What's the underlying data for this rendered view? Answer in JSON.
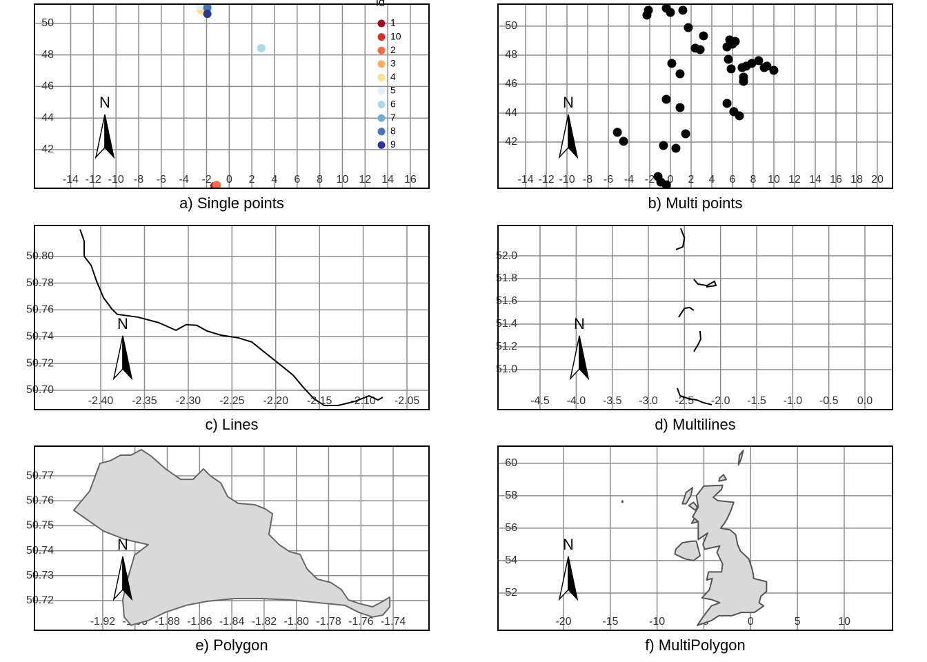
{
  "chart_data": [
    {
      "type": "scatter",
      "title": "a) Single points",
      "legend_title": "id",
      "north_label": "N",
      "grid": true,
      "xlim": [
        -17.2,
        17.65
      ],
      "ylim": [
        39.55,
        51.22
      ],
      "xticks": [
        -14,
        -12,
        -10,
        -8,
        -6,
        -4,
        -2,
        0,
        2,
        4,
        6,
        8,
        10,
        12,
        14,
        16
      ],
      "yticks": [
        42,
        44,
        46,
        48,
        50
      ],
      "series": [
        {
          "name": "1",
          "color": "#a50026",
          "x": [
            -1.3
          ],
          "y": [
            39.7
          ]
        },
        {
          "name": "10",
          "color": "#d73027",
          "x": [
            -1.2
          ],
          "y": [
            39.72
          ]
        },
        {
          "name": "2",
          "color": "#f46d43",
          "x": [
            -1.1
          ],
          "y": [
            39.75
          ]
        },
        {
          "name": "3",
          "color": "#fdae61",
          "x": [
            -2.5
          ],
          "y": [
            51.0
          ]
        },
        {
          "name": "4",
          "color": "#fee090",
          "x": [
            -2.5
          ],
          "y": [
            50.83
          ]
        },
        {
          "name": "5",
          "color": "#e0f3f8",
          "x": [
            -2.6
          ],
          "y": [
            51.1
          ]
        },
        {
          "name": "6",
          "color": "#abd9e9",
          "x": [
            2.83
          ],
          "y": [
            48.43
          ]
        },
        {
          "name": "7",
          "color": "#74add1",
          "x": [
            -1.93
          ],
          "y": [
            50.95
          ]
        },
        {
          "name": "8",
          "color": "#4575b4",
          "x": [
            -1.93
          ],
          "y": [
            51.0
          ]
        },
        {
          "name": "9",
          "color": "#313695",
          "x": [
            -1.93
          ],
          "y": [
            50.6
          ]
        }
      ]
    },
    {
      "type": "scatter",
      "title": "b) Multi points",
      "north_label": "N",
      "grid": true,
      "xlim": [
        -16.67,
        21.47
      ],
      "ylim": [
        38.81,
        51.52
      ],
      "xticks": [
        -14,
        -12,
        -10,
        -8,
        -6,
        -4,
        -2,
        0,
        2,
        4,
        6,
        8,
        10,
        12,
        14,
        16,
        18,
        20
      ],
      "yticks": [
        42,
        44,
        46,
        48,
        50
      ],
      "series": [
        {
          "color": "#000000",
          "x": [
            -2.13,
            -2.27,
            -0.4,
            0.0,
            1.2,
            1.73,
            3.2,
            2.4,
            2.87,
            0.13,
            0.93,
            5.73,
            6.0,
            5.47,
            6.27,
            5.6,
            5.87,
            6.93,
            7.33,
            7.87,
            8.53,
            9.07,
            9.33,
            10.0,
            7.07,
            7.07,
            -0.4,
            0.93,
            5.47,
            6.13,
            6.67,
            -5.13,
            -4.53,
            1.47,
            -0.67,
            0.53,
            -1.2,
            -0.93,
            -0.4
          ],
          "y": [
            51.1,
            50.76,
            51.24,
            50.95,
            51.1,
            49.9,
            49.33,
            48.48,
            48.38,
            47.43,
            46.71,
            49.05,
            48.76,
            48.57,
            48.95,
            47.71,
            47.05,
            47.14,
            47.24,
            47.43,
            47.62,
            47.14,
            47.24,
            46.95,
            46.48,
            46.19,
            44.95,
            44.38,
            44.67,
            44.1,
            43.81,
            42.67,
            42.05,
            42.57,
            41.76,
            41.57,
            39.62,
            39.24,
            39.05
          ]
        }
      ]
    },
    {
      "type": "line",
      "title": "c) Lines",
      "north_label": "N",
      "grid": true,
      "xlim": [
        -2.4757,
        -2.0248
      ],
      "ylim": [
        50.6856,
        50.823
      ],
      "xticks": [
        {
          "value": -2.4,
          "label": "-2.40"
        },
        -2.35,
        {
          "value": -2.3,
          "label": "-2.30"
        },
        -2.25,
        {
          "value": -2.2,
          "label": "-2.20"
        },
        -2.15,
        {
          "value": -2.1,
          "label": "-2.10"
        },
        -2.05
      ],
      "yticks": [
        {
          "value": 50.7,
          "label": "50.70"
        },
        50.72,
        50.74,
        50.76,
        50.78,
        {
          "value": 50.8,
          "label": "50.80"
        }
      ],
      "series": [
        {
          "color": "#000000",
          "x": [
            -2.4236,
            -2.4189,
            -2.4189,
            -2.411,
            -2.4047,
            -2.3968,
            -2.3874,
            -2.3811,
            -2.3574,
            -2.3338,
            -2.3141,
            -2.3023,
            -2.2904,
            -2.2786,
            -2.2628,
            -2.2431,
            -2.2274,
            -2.2116,
            -2.1958,
            -2.1801,
            -2.1683,
            -2.1564,
            -2.1446,
            -2.1288,
            -2.1091,
            -2.0934,
            -2.0831,
            -2.0776
          ],
          "y": [
            50.8201,
            50.8113,
            50.8,
            50.7933,
            50.7814,
            50.7691,
            50.7608,
            50.7567,
            50.7546,
            50.7505,
            50.7448,
            50.749,
            50.7485,
            50.7443,
            50.7412,
            50.7392,
            50.7361,
            50.7278,
            50.7196,
            50.7113,
            50.7021,
            50.6938,
            50.6887,
            50.6887,
            50.6918,
            50.6959,
            50.6928,
            50.6948
          ]
        }
      ]
    },
    {
      "type": "line",
      "title": "d) Multilines",
      "north_label": "N",
      "grid": true,
      "xlim": [
        -5.083,
        0.382
      ],
      "ylim": [
        50.648,
        52.267
      ],
      "xticks": [
        -4.5,
        {
          "value": -4,
          "label": "-4.0"
        },
        -3.5,
        {
          "value": -3,
          "label": "-3.0"
        },
        -2.5,
        {
          "value": -2,
          "label": "-2.0"
        },
        -1.5,
        {
          "value": -1,
          "label": "-1.0"
        },
        -0.5,
        {
          "value": 0,
          "label": "0.0"
        }
      ],
      "yticks": [
        {
          "value": 51,
          "label": "51.0"
        },
        51.2,
        51.4,
        51.6,
        51.8,
        {
          "value": 52,
          "label": "52.0"
        }
      ],
      "series": [
        {
          "color": "#000000",
          "x": [
            -2.552,
            -2.5,
            -2.523,
            -2.618,
            null,
            -2.37,
            -2.313,
            -2.189,
            -2.084,
            -2.064,
            -2.198,
            null,
            -2.58,
            -2.5,
            -2.427,
            -2.37,
            null,
            -2.284,
            -2.275,
            -2.313,
            -2.37,
            null,
            -2.599,
            -2.561,
            -2.447,
            -2.332,
            -2.236,
            -2.122
          ],
          "y": [
            52.242,
            52.158,
            52.079,
            52.055,
            null,
            51.794,
            51.752,
            51.739,
            51.776,
            51.739,
            51.727,
            null,
            51.461,
            51.539,
            51.545,
            51.521,
            null,
            51.339,
            51.267,
            51.218,
            51.158,
            null,
            50.836,
            50.77,
            50.745,
            50.733,
            50.709,
            50.691
          ]
        }
      ]
    },
    {
      "type": "polygon",
      "title": "e) Polygon",
      "north_label": "N",
      "grid": true,
      "xlim": [
        -1.9623,
        -1.7178
      ],
      "ylim": [
        50.7081,
        50.7819
      ],
      "xticks": [
        -1.92,
        {
          "value": -1.9,
          "label": "-1.90"
        },
        -1.88,
        -1.86,
        -1.84,
        -1.82,
        {
          "value": -1.8,
          "label": "-1.80"
        },
        -1.78,
        -1.76,
        -1.74
      ],
      "yticks": [
        50.72,
        50.73,
        50.74,
        50.75,
        50.76,
        50.77
      ],
      "series": [
        {
          "color": "#666666",
          "fill": "#d9d9d9",
          "x": [
            -1.938,
            -1.9281,
            -1.9217,
            -1.9153,
            -1.9089,
            -1.9025,
            -1.8961,
            -1.8896,
            -1.8811,
            -1.8717,
            -1.864,
            -1.8576,
            -1.8533,
            -1.8469,
            -1.8426,
            -1.8362,
            -1.8255,
            -1.8191,
            -1.8148,
            -1.817,
            -1.8106,
            -1.8041,
            -1.7977,
            -1.7934,
            -1.787,
            -1.7785,
            -1.7721,
            -1.7678,
            -1.7614,
            -1.7528,
            -1.7464,
            -1.7421,
            -1.7421,
            -1.7464,
            -1.7528,
            -1.7614,
            -1.7699,
            -1.787,
            -1.8041,
            -1.8212,
            -1.8383,
            -1.8554,
            -1.8683,
            -1.8811,
            -1.8918,
            -1.9025,
            -1.9067,
            -1.9076,
            -1.9046,
            -1.9003,
            -1.8918,
            -1.9067,
            -1.9196
          ],
          "y": [
            50.7562,
            50.7639,
            50.775,
            50.7761,
            50.7783,
            50.7783,
            50.7805,
            50.7777,
            50.7728,
            50.7686,
            50.7686,
            50.7728,
            50.77,
            50.7672,
            50.7617,
            50.759,
            50.7584,
            50.7567,
            50.7548,
            50.7465,
            50.7424,
            50.7396,
            50.7385,
            50.7327,
            50.7286,
            50.7272,
            50.7244,
            50.7203,
            50.7189,
            50.7175,
            50.7197,
            50.7214,
            50.7175,
            50.7142,
            50.7134,
            50.7153,
            50.7181,
            50.7192,
            50.7203,
            50.7208,
            50.7208,
            50.7197,
            50.7181,
            50.7153,
            50.712,
            50.7101,
            50.7134,
            50.7203,
            50.7286,
            50.7382,
            50.7424,
            50.7446,
            50.7479
          ]
        }
      ]
    },
    {
      "type": "polygon",
      "title": "f) MultiPolygon",
      "north_label": "N",
      "grid": true,
      "xlim": [
        -27.0,
        15.16
      ],
      "ylim": [
        49.7,
        61.06
      ],
      "xticks": [
        -20,
        -15,
        -10,
        -5,
        0,
        5,
        10
      ],
      "yticks": [
        52,
        54,
        56,
        58,
        60
      ],
      "series": [
        {
          "color": "#555555",
          "fill": "#d9d9d9",
          "x": [
            -5.0,
            -3.0,
            -3.1,
            -4.0,
            -3.5,
            -1.8,
            -2.1,
            -2.5,
            -2.8,
            -3.2,
            -2.2,
            -1.6,
            -1.4,
            -1.1,
            -0.2,
            0.1,
            0.3,
            0.3,
            1.7,
            1.7,
            1.1,
            0.9,
            1.4,
            0.4,
            -1.0,
            -2.0,
            -3.4,
            -4.2,
            -5.7,
            -5.0,
            -4.2,
            -3.3,
            -4.2,
            -5.2,
            -4.4,
            -4.1,
            -4.7,
            -4.5,
            -3.1,
            -3.0,
            -3.6,
            -3.3,
            -4.9,
            -5.1,
            -4.6,
            -5.6,
            -5.6,
            -6.2,
            -5.6,
            -5.8
          ],
          "y": [
            58.6,
            58.65,
            58.4,
            57.9,
            57.7,
            57.6,
            57.1,
            56.6,
            56.3,
            56.0,
            55.9,
            55.6,
            55.0,
            54.6,
            54.1,
            53.6,
            53.1,
            52.9,
            52.7,
            52.1,
            51.8,
            51.4,
            51.2,
            50.8,
            50.8,
            50.6,
            50.6,
            50.3,
            50.0,
            50.6,
            51.2,
            51.4,
            51.6,
            51.7,
            52.2,
            52.9,
            52.8,
            53.3,
            53.3,
            53.8,
            54.5,
            54.9,
            54.7,
            55.0,
            55.7,
            55.3,
            56.4,
            56.7,
            57.3,
            58.0
          ]
        },
        {
          "color": "#555555",
          "fill": "#d9d9d9",
          "x": [
            -5.4,
            -5.8,
            -6.3,
            -7.3,
            -8.0,
            -8.1,
            -7.0,
            -6.1
          ],
          "y": [
            54.3,
            55.2,
            55.2,
            55.1,
            54.7,
            54.4,
            54.1,
            54.0
          ]
        },
        {
          "color": "#555555",
          "fill": "#d9d9d9",
          "x": [
            -1.3,
            -1.2,
            -0.8,
            -1.0
          ],
          "y": [
            59.9,
            60.5,
            60.8,
            60.3
          ]
        },
        {
          "color": "#555555",
          "fill": "#d9d9d9",
          "x": [
            -3.4,
            -2.6,
            -2.9,
            -3.3
          ],
          "y": [
            58.9,
            59.0,
            59.3,
            59.1
          ]
        },
        {
          "color": "#555555",
          "fill": "#d9d9d9",
          "x": [
            -6.2,
            -6.9,
            -7.3,
            -6.9,
            -6.4
          ],
          "y": [
            58.5,
            58.2,
            57.5,
            57.5,
            58.0
          ]
        },
        {
          "color": "#555555",
          "fill": "#d9d9d9",
          "x": [
            -6.1,
            -6.6,
            -5.9,
            -5.7
          ],
          "y": [
            57.6,
            57.4,
            57.1,
            57.3
          ]
        },
        {
          "color": "#555555",
          "fill": "#d9d9d9",
          "x": [
            -6.0,
            -6.3,
            -5.6
          ],
          "y": [
            56.6,
            56.3,
            56.4
          ]
        },
        {
          "color": "#555555",
          "fill": "#d9d9d9",
          "x": [
            -13.75,
            -13.65,
            -13.7
          ],
          "y": [
            57.6,
            57.6,
            57.7
          ]
        }
      ]
    }
  ]
}
